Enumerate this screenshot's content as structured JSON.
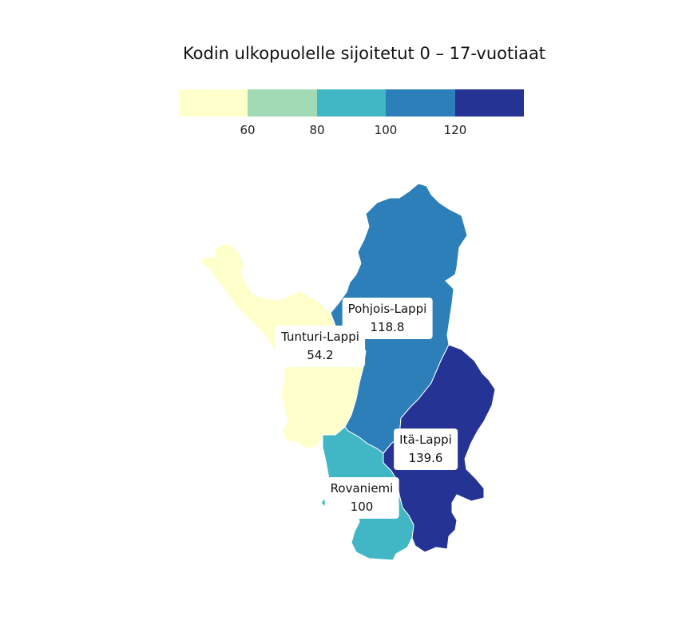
{
  "title": "Kodin ulkopuolelle sijoitetut 0 – 17-vuotiaat",
  "legend": {
    "colors": [
      "#ffffcc",
      "#a1dab4",
      "#41b6c4",
      "#2c7fb8",
      "#253494"
    ],
    "ticks": [
      "60",
      "80",
      "100",
      "120"
    ]
  },
  "regions": [
    {
      "name": "Tunturi-Lappi",
      "value": "54.2",
      "color": "#ffffcc"
    },
    {
      "name": "Pohjois-Lappi",
      "value": "118.8",
      "color": "#2c7fb8"
    },
    {
      "name": "Itä-Lappi",
      "value": "139.6",
      "color": "#253494"
    },
    {
      "name": "Rovaniemi",
      "value": "100",
      "color": "#41b6c4"
    }
  ]
}
